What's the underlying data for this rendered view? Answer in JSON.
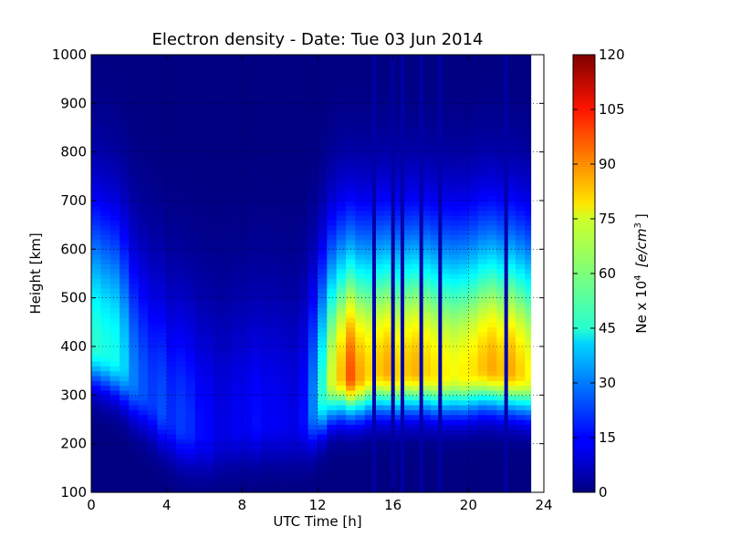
{
  "chart_data": {
    "type": "heatmap",
    "title": "Electron density - Date: Tue 03 Jun 2014",
    "xlabel": "UTC Time [h]",
    "ylabel": "Height [km]",
    "xlim": [
      0,
      24
    ],
    "ylim": [
      100,
      1000
    ],
    "x_ticks": [
      "0",
      "4",
      "8",
      "12",
      "16",
      "20",
      "24"
    ],
    "y_ticks": [
      "100",
      "200",
      "300",
      "400",
      "500",
      "600",
      "700",
      "800",
      "900",
      "1000"
    ],
    "grid": true,
    "colormap": "jet",
    "data_extent_hours": [
      0,
      23.3
    ],
    "colorbar": {
      "label": "Ne x 10",
      "label_exponent": "4",
      "label_unit": "[e/cm",
      "label_unit_exponent": "3",
      "label_close": "]",
      "range": [
        0,
        120
      ],
      "ticks": [
        "0",
        "15",
        "30",
        "45",
        "60",
        "75",
        "90",
        "105",
        "120"
      ]
    },
    "profile_times_h": [
      0.0,
      0.5,
      1.0,
      1.5,
      2.0,
      2.5,
      3.0,
      3.5,
      4.0,
      4.5,
      5.0,
      5.5,
      6.0,
      6.5,
      7.0,
      7.5,
      8.0,
      8.5,
      9.0,
      9.5,
      10.0,
      10.5,
      11.0,
      11.5,
      12.0,
      12.5,
      13.0,
      13.5,
      14.0,
      14.5,
      15.0,
      15.5,
      16.0,
      16.5,
      17.0,
      17.5,
      18.0,
      18.5,
      19.0,
      19.5,
      20.0,
      20.5,
      21.0,
      21.5,
      22.0,
      22.5,
      23.0
    ],
    "peak_density": [
      50,
      48,
      47,
      40,
      30,
      25,
      22,
      24,
      20,
      22,
      20,
      16,
      15,
      12,
      12,
      14,
      14,
      16,
      14,
      14,
      13,
      12,
      16,
      30,
      50,
      70,
      82,
      95,
      85,
      80,
      82,
      85,
      80,
      82,
      84,
      80,
      78,
      76,
      74,
      76,
      78,
      82,
      85,
      82,
      85,
      80,
      75
    ],
    "peak_height_km": [
      400,
      390,
      380,
      360,
      330,
      310,
      290,
      270,
      250,
      240,
      230,
      225,
      220,
      225,
      230,
      235,
      240,
      240,
      245,
      245,
      240,
      240,
      250,
      270,
      300,
      330,
      340,
      340,
      340,
      345,
      350,
      350,
      345,
      350,
      350,
      350,
      345,
      345,
      345,
      345,
      350,
      355,
      355,
      350,
      350,
      345,
      340
    ],
    "low_density_times_h": [
      15.0,
      16.0,
      16.5,
      17.5,
      18.5,
      22.0
    ]
  }
}
